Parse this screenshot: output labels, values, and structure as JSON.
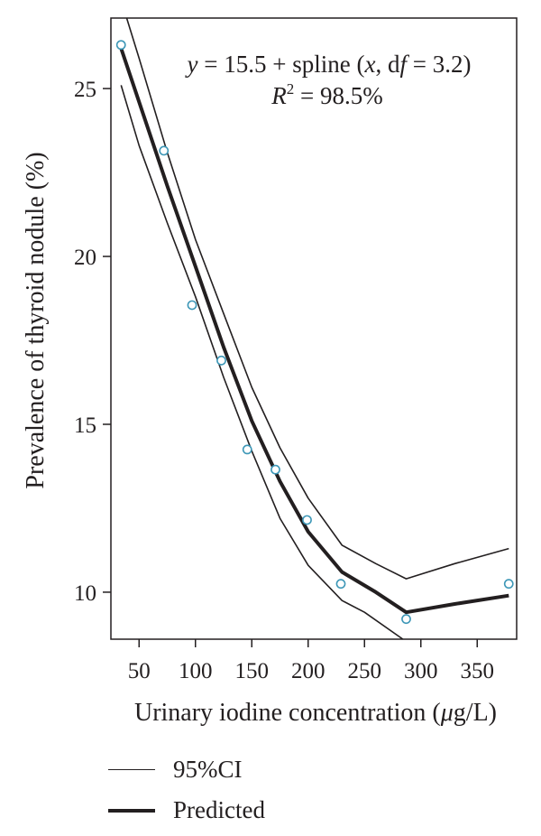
{
  "chart_data": {
    "type": "line",
    "xlabel_prefix": "Urinary iodine concentration (",
    "xlabel_mu": "μ",
    "xlabel_suffix": "g/L)",
    "ylabel": "Prevalence of thyroid nodule (%)",
    "equation": {
      "y": "y",
      "eq_mid": " = 15.5 + spline (",
      "x": "x",
      "comma": ", d",
      "f": "f",
      "tail": " = 3.2)",
      "r": "R",
      "r_sup": "2",
      "r_tail": " = 98.5%"
    },
    "xlim": [
      25,
      385
    ],
    "ylim": [
      8.6,
      27.1
    ],
    "x_ticks": [
      50,
      100,
      150,
      200,
      250,
      300,
      350
    ],
    "y_ticks": [
      10,
      15,
      20,
      25
    ],
    "grid": false,
    "legend_position": "bottom-left",
    "legend": [
      {
        "label": "95%CI",
        "style": "thin"
      },
      {
        "label": "Predicted",
        "style": "thick"
      }
    ],
    "colors": {
      "line": "#231f20",
      "points": "#3d97b7"
    },
    "observed": {
      "x": [
        34,
        72,
        97,
        123,
        146,
        171,
        199,
        229,
        287,
        378
      ],
      "y": [
        26.3,
        23.15,
        18.55,
        16.9,
        14.25,
        13.65,
        12.15,
        10.25,
        9.2,
        10.25
      ]
    },
    "predicted": {
      "x": [
        34,
        50,
        75,
        100,
        125,
        150,
        175,
        200,
        230,
        260,
        287,
        330,
        378
      ],
      "y": [
        26.2,
        24.6,
        22.1,
        19.7,
        17.3,
        15.1,
        13.3,
        11.8,
        10.6,
        10.0,
        9.4,
        9.65,
        9.9
      ]
    },
    "ci_upper": {
      "x": [
        39,
        50,
        75,
        100,
        125,
        150,
        175,
        200,
        230,
        260,
        287,
        330,
        378
      ],
      "y": [
        27.1,
        25.9,
        23.1,
        20.5,
        18.3,
        16.1,
        14.3,
        12.8,
        11.4,
        10.85,
        10.4,
        10.85,
        11.3
      ]
    },
    "ci_lower": {
      "x": [
        34,
        50,
        75,
        100,
        125,
        150,
        175,
        200,
        230,
        250,
        284
      ],
      "y": [
        25.1,
        23.3,
        21.0,
        18.8,
        16.4,
        14.2,
        12.2,
        10.8,
        9.75,
        9.4,
        8.6
      ]
    }
  }
}
